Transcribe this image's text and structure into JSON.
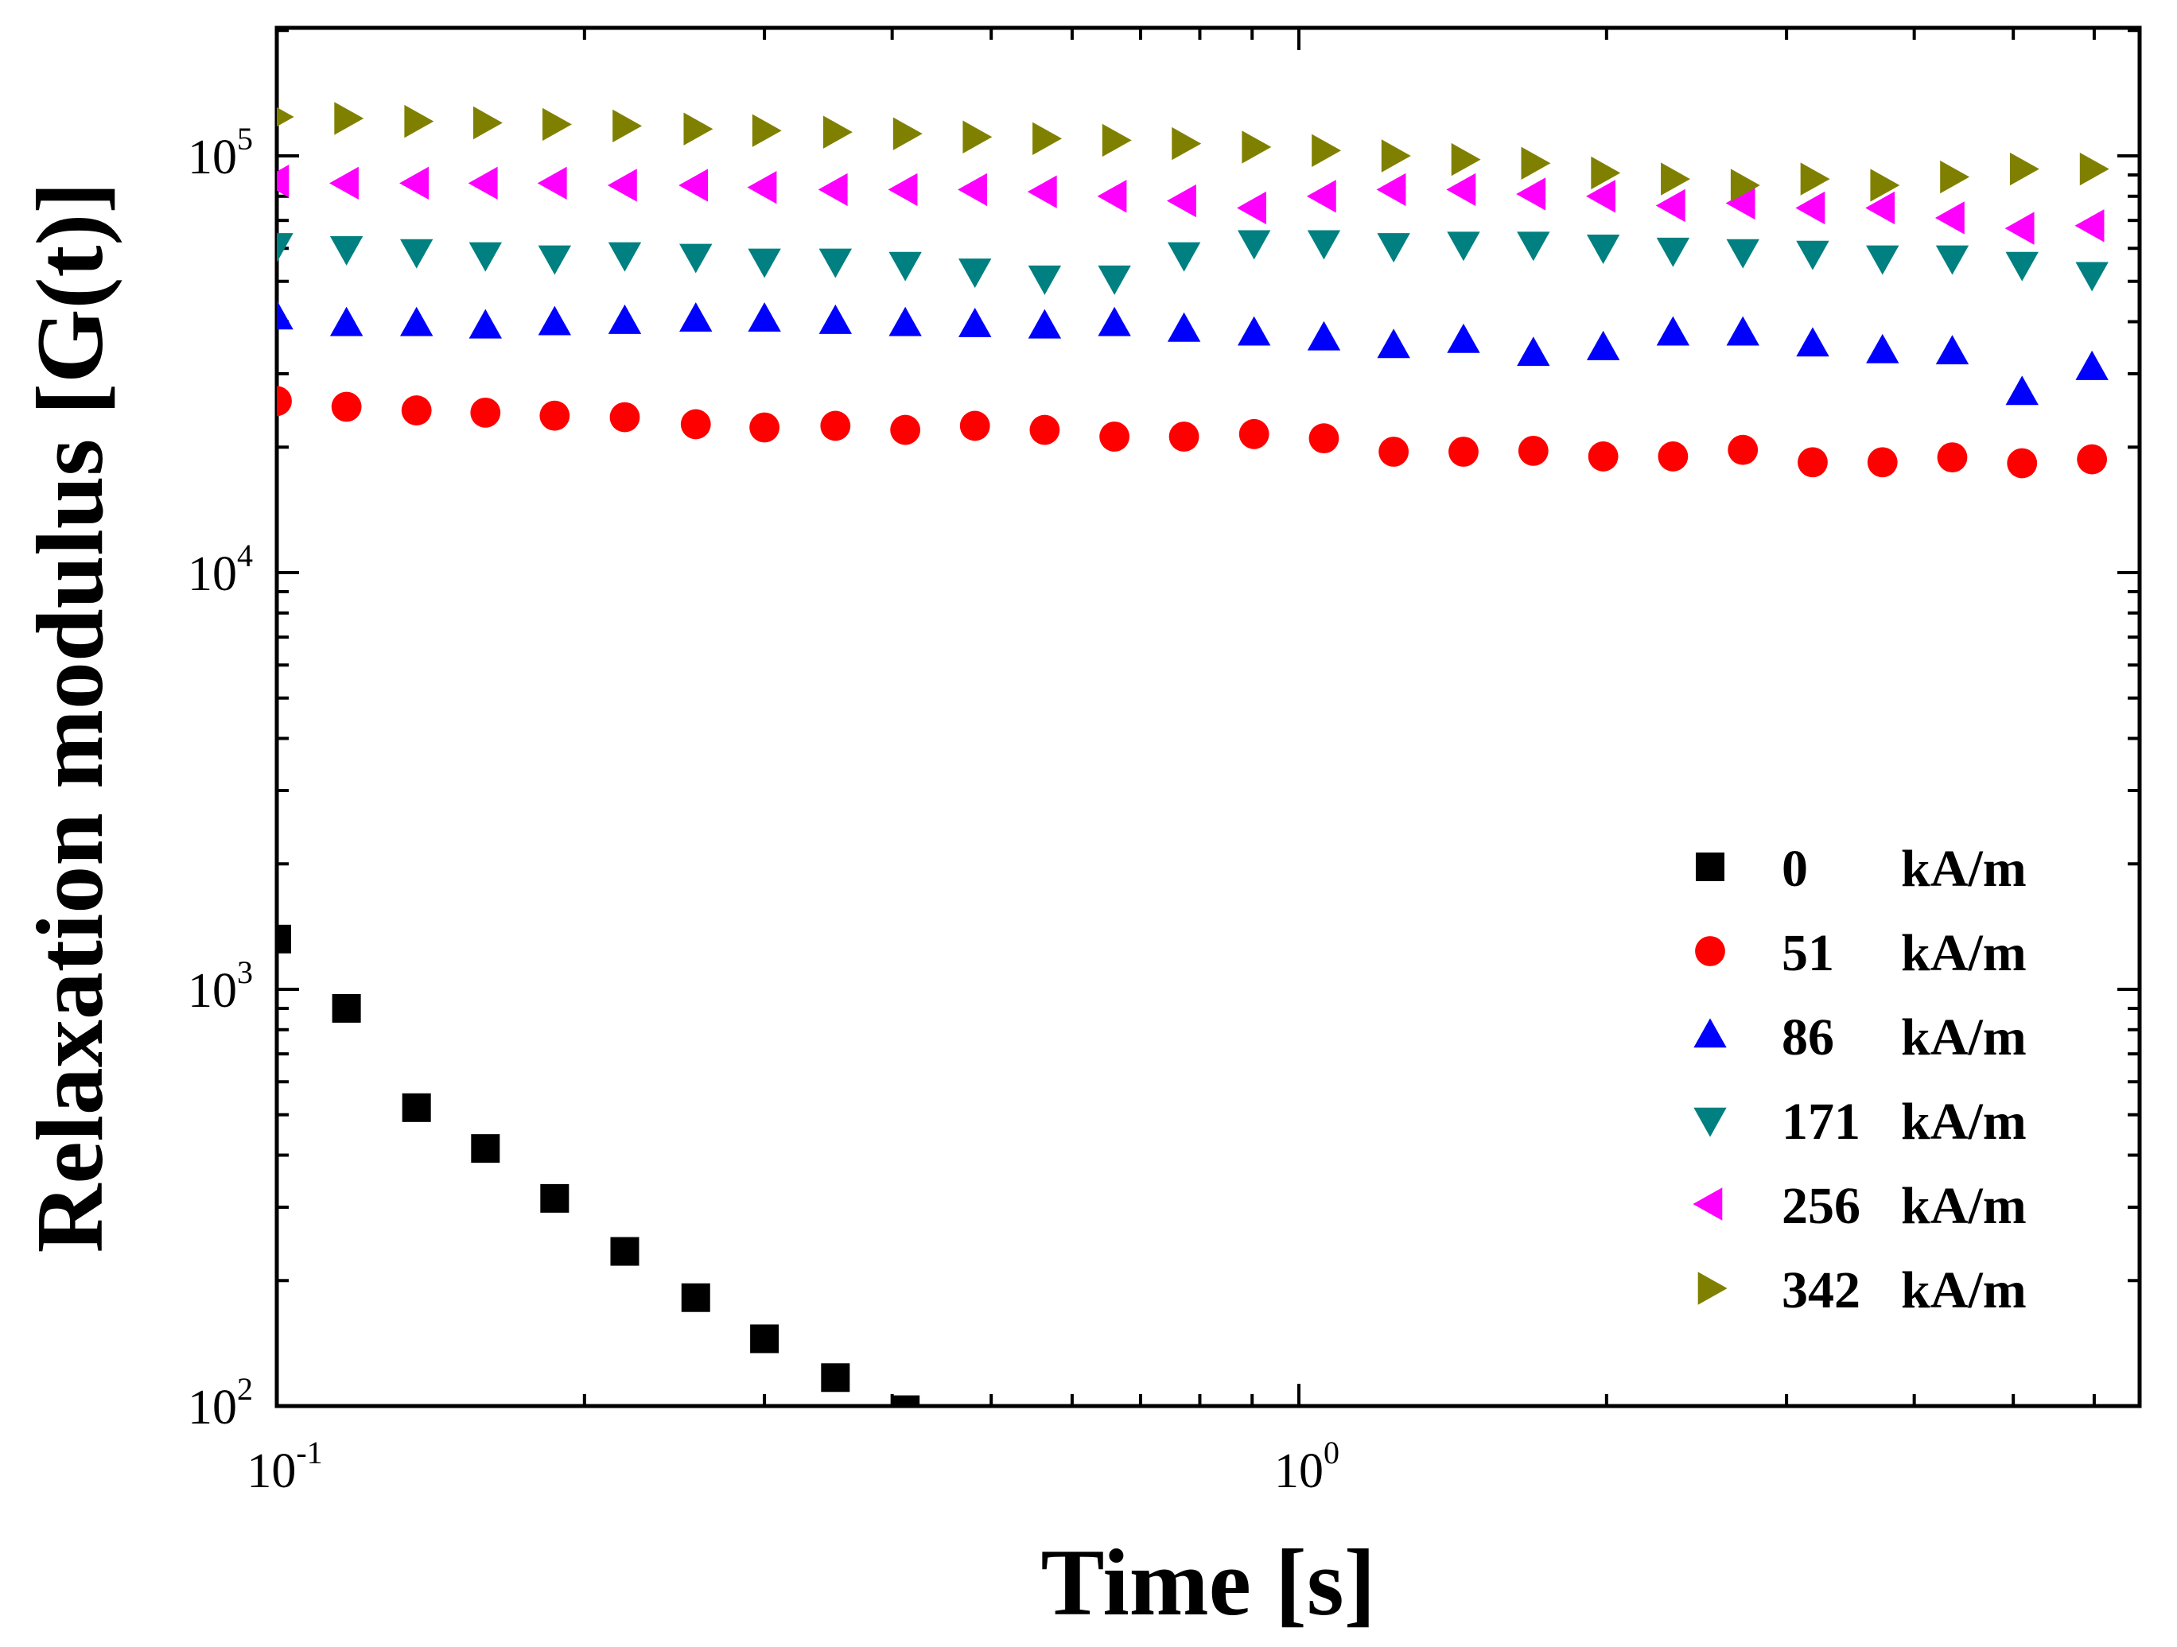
{
  "chart_data": {
    "type": "scatter",
    "title": "",
    "xlabel": "Time [s]",
    "ylabel": "Relaxation modulus [G(t)]",
    "x_scale": "log",
    "y_scale": "log",
    "xlim": [
      0.1,
      6.3
    ],
    "ylim": [
      100,
      200000
    ],
    "x_ticks": [
      {
        "value": 0.1,
        "base": "10",
        "exp": "-1"
      },
      {
        "value": 1,
        "base": "10",
        "exp": "0"
      }
    ],
    "y_ticks": [
      {
        "value": 100,
        "base": "10",
        "exp": "2"
      },
      {
        "value": 1000,
        "base": "10",
        "exp": "3"
      },
      {
        "value": 10000,
        "base": "10",
        "exp": "4"
      },
      {
        "value": 100000,
        "base": "10",
        "exp": "5"
      }
    ],
    "grid": false,
    "legend_position": "bottom-right",
    "series": [
      {
        "name": "0",
        "unit": "kA/m",
        "marker": "square",
        "color": "#000000",
        "x": [
          0.1,
          0.117,
          0.137,
          0.16,
          0.187,
          0.219,
          0.257,
          0.3,
          0.352,
          0.412
        ],
        "y": [
          1320,
          900,
          520,
          415,
          315,
          235,
          182,
          145,
          117,
          98
        ]
      },
      {
        "name": "51",
        "unit": "kA/m",
        "marker": "circle",
        "color": "#ff0000",
        "x": [
          0.1,
          0.117,
          0.137,
          0.16,
          0.187,
          0.219,
          0.257,
          0.3,
          0.352,
          0.412,
          0.482,
          0.564,
          0.66,
          0.772,
          0.904,
          1.058,
          1.238,
          1.449,
          1.696,
          1.985,
          2.323,
          2.719,
          3.182,
          3.724,
          4.358,
          5.1,
          5.97
        ],
        "y": [
          25800,
          25000,
          24500,
          24200,
          23800,
          23600,
          22700,
          22300,
          22500,
          22000,
          22500,
          22000,
          21200,
          21200,
          21500,
          21000,
          19500,
          19500,
          19600,
          19000,
          19000,
          19700,
          18400,
          18400,
          18900,
          18300,
          18700
        ]
      },
      {
        "name": "86",
        "unit": "kA/m",
        "marker": "triangle-up",
        "color": "#0000ff",
        "x": [
          0.1,
          0.117,
          0.137,
          0.16,
          0.187,
          0.219,
          0.257,
          0.3,
          0.352,
          0.412,
          0.482,
          0.564,
          0.66,
          0.772,
          0.904,
          1.058,
          1.238,
          1.449,
          1.696,
          1.985,
          2.323,
          2.719,
          3.182,
          3.724,
          4.358,
          5.1,
          5.97
        ],
        "y": [
          41000,
          39500,
          39500,
          39000,
          39700,
          40000,
          40500,
          40500,
          40000,
          39500,
          39300,
          39000,
          39500,
          38300,
          37500,
          36500,
          35000,
          36000,
          33500,
          34600,
          37500,
          37500,
          35300,
          34000,
          33800,
          27000,
          31000
        ]
      },
      {
        "name": "171",
        "unit": "kA/m",
        "marker": "triangle-down",
        "color": "#008080",
        "x": [
          0.1,
          0.117,
          0.137,
          0.16,
          0.187,
          0.219,
          0.257,
          0.3,
          0.352,
          0.412,
          0.482,
          0.564,
          0.66,
          0.772,
          0.904,
          1.058,
          1.238,
          1.449,
          1.696,
          1.985,
          2.323,
          2.719,
          3.182,
          3.724,
          4.358,
          5.1,
          5.97
        ],
        "y": [
          61000,
          60000,
          59000,
          58000,
          57000,
          58000,
          57500,
          56000,
          56000,
          55000,
          53000,
          51000,
          51000,
          58000,
          62000,
          62000,
          61000,
          61500,
          61500,
          60500,
          59500,
          59000,
          58500,
          57000,
          57000,
          55000,
          52000
        ]
      },
      {
        "name": "256",
        "unit": "kA/m",
        "marker": "triangle-left",
        "color": "#ff00ff",
        "x": [
          0.1,
          0.117,
          0.137,
          0.16,
          0.187,
          0.219,
          0.257,
          0.3,
          0.352,
          0.412,
          0.482,
          0.564,
          0.66,
          0.772,
          0.904,
          1.058,
          1.238,
          1.449,
          1.696,
          1.985,
          2.323,
          2.719,
          3.182,
          3.724,
          4.358,
          5.1,
          5.97
        ],
        "y": [
          87000,
          86000,
          86000,
          86000,
          86000,
          85000,
          85000,
          84000,
          83000,
          83000,
          83000,
          82000,
          80000,
          78000,
          75000,
          80000,
          83000,
          83000,
          81000,
          80000,
          76000,
          77000,
          75000,
          75000,
          71000,
          67000,
          68000
        ]
      },
      {
        "name": "342",
        "unit": "kA/m",
        "marker": "triangle-right",
        "color": "#808000",
        "x": [
          0.1,
          0.117,
          0.137,
          0.16,
          0.187,
          0.219,
          0.257,
          0.3,
          0.352,
          0.412,
          0.482,
          0.564,
          0.66,
          0.772,
          0.904,
          1.058,
          1.238,
          1.449,
          1.696,
          1.985,
          2.323,
          2.719,
          3.182,
          3.724,
          4.358,
          5.1,
          5.97
        ],
        "y": [
          124000,
          123000,
          121000,
          120000,
          119000,
          118000,
          116000,
          115000,
          114000,
          113000,
          111000,
          110000,
          109000,
          107000,
          105000,
          103000,
          100000,
          98000,
          96000,
          91000,
          88000,
          85000,
          88000,
          85000,
          89000,
          93000,
          93000
        ]
      }
    ]
  }
}
